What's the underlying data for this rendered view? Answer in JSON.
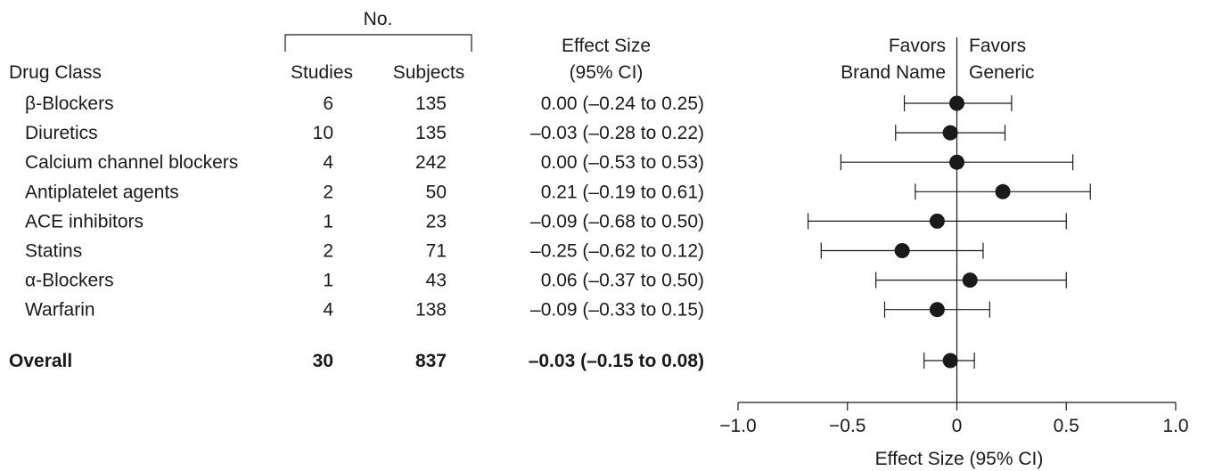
{
  "table": {
    "no_header": "No.",
    "col_drug": "Drug Class",
    "col_studies": "Studies",
    "col_subjects": "Subjects",
    "col_effect_line1": "Effect Size",
    "col_effect_line2": "(95% CI)"
  },
  "favors": {
    "left_line1": "Favors",
    "left_line2": "Brand Name",
    "right_line1": "Favors",
    "right_line2": "Generic"
  },
  "chart_data": {
    "type": "forest",
    "xlabel": "Effect Size (95% CI)",
    "xlim": [
      -1.0,
      1.0
    ],
    "xticks": [
      -1.0,
      -0.5,
      0,
      0.5,
      1.0
    ],
    "xtick_labels": [
      "−1.0",
      "−0.5",
      "0",
      "0.5",
      "1.0"
    ],
    "reference_line": 0,
    "rows": [
      {
        "label": "β-Blockers",
        "studies": "6",
        "subjects": "135",
        "ci_text": "0.00 (–0.24 to 0.25)",
        "estimate": 0.0,
        "lower": -0.24,
        "upper": 0.25
      },
      {
        "label": "Diuretics",
        "studies": "10",
        "subjects": "135",
        "ci_text": "–0.03 (–0.28 to 0.22)",
        "estimate": -0.03,
        "lower": -0.28,
        "upper": 0.22
      },
      {
        "label": "Calcium channel blockers",
        "studies": "4",
        "subjects": "242",
        "ci_text": "0.00 (–0.53 to 0.53)",
        "estimate": 0.0,
        "lower": -0.53,
        "upper": 0.53
      },
      {
        "label": "Antiplatelet agents",
        "studies": "2",
        "subjects": "50",
        "ci_text": "0.21 (–0.19 to 0.61)",
        "estimate": 0.21,
        "lower": -0.19,
        "upper": 0.61
      },
      {
        "label": "ACE inhibitors",
        "studies": "1",
        "subjects": "23",
        "ci_text": "–0.09 (–0.68 to 0.50)",
        "estimate": -0.09,
        "lower": -0.68,
        "upper": 0.5
      },
      {
        "label": "Statins",
        "studies": "2",
        "subjects": "71",
        "ci_text": "–0.25 (–0.62 to 0.12)",
        "estimate": -0.25,
        "lower": -0.62,
        "upper": 0.12
      },
      {
        "label": "α-Blockers",
        "studies": "1",
        "subjects": "43",
        "ci_text": "0.06 (–0.37 to 0.50)",
        "estimate": 0.06,
        "lower": -0.37,
        "upper": 0.5
      },
      {
        "label": "Warfarin",
        "studies": "4",
        "subjects": "138",
        "ci_text": "–0.09 (–0.33 to 0.15)",
        "estimate": -0.09,
        "lower": -0.33,
        "upper": 0.15
      }
    ],
    "overall": {
      "label": "Overall",
      "studies": "30",
      "subjects": "837",
      "ci_text": "–0.03 (–0.15 to 0.08)",
      "estimate": -0.03,
      "lower": -0.15,
      "upper": 0.08
    }
  }
}
